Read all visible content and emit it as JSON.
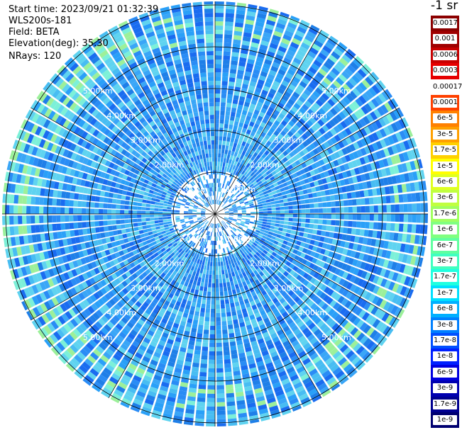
{
  "header": {
    "start_time": "Start time: 2023/09/21 01:32:39",
    "instrument": "WLS200s-181",
    "field": "Field: BETA",
    "elevation": "Elevation(deg): 35.30",
    "nrays": "NRays: 120"
  },
  "colorbar": {
    "unit_label": "-1 sr",
    "labels": [
      "0.0017",
      "0.001",
      "0.0006",
      "0.0003",
      "0.00017",
      "0.0001",
      "6e-5",
      "3e-5",
      "1.7e-5",
      "1e-5",
      "6e-6",
      "3e-6",
      "1.7e-6",
      "1e-6",
      "6e-7",
      "3e-7",
      "1.7e-7",
      "1e-7",
      "6e-8",
      "3e-8",
      "1.7e-8",
      "1e-8",
      "6e-9",
      "3e-9",
      "1.7e-9",
      "1e-9"
    ],
    "colors": [
      "#8b0000",
      "#a00000",
      "#c80000",
      "#e60000",
      "#ffffff",
      "#ff4000",
      "#ff8000",
      "#ffa000",
      "#ffd000",
      "#ffff00",
      "#e0ff20",
      "#c0ff40",
      "#a0ff60",
      "#80ff80",
      "#60ffa0",
      "#40ffc0",
      "#20ffe0",
      "#00e0ff",
      "#00b0ff",
      "#0080ff",
      "#0050ff",
      "#0020ff",
      "#0000e0",
      "#0000b0",
      "#000090",
      "#000070"
    ]
  },
  "ppi": {
    "range_rings": [
      "1.00km",
      "2.00km",
      "3.00km",
      "4.00km",
      "5.00km"
    ],
    "nrays": 120,
    "palette": [
      "#1a6cf0",
      "#2a8cf5",
      "#3aa6f7",
      "#48bdf2",
      "#2aa0f8",
      "#1f7fe8",
      "#5fd3f0",
      "#7cf0d8",
      "#9cf09a",
      "#0f55d8"
    ]
  }
}
